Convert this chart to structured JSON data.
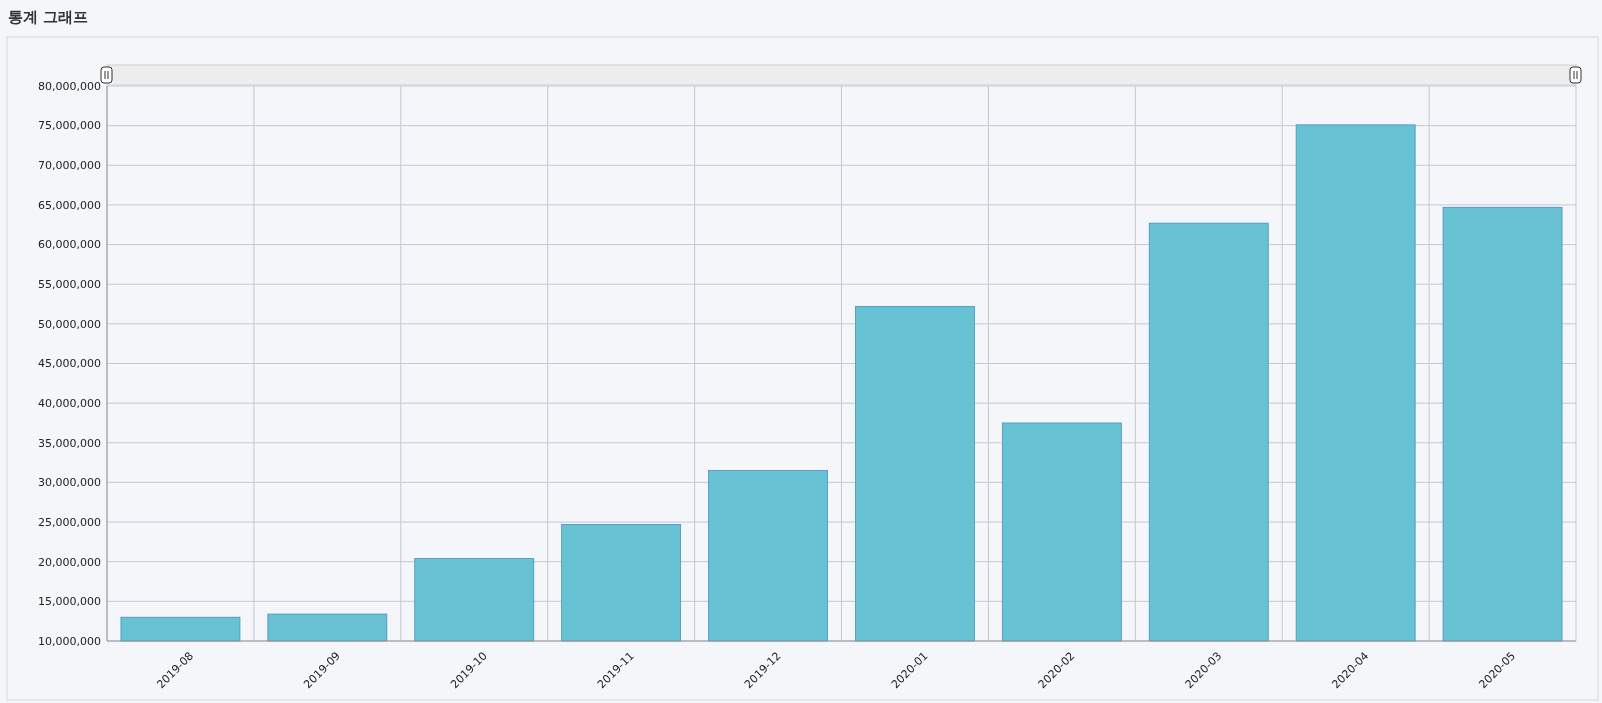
{
  "chart_data": {
    "type": "bar",
    "title": "통계 그래프",
    "categories": [
      "2019-08",
      "2019-09",
      "2019-10",
      "2019-11",
      "2019-12",
      "2020-01",
      "2020-02",
      "2020-03",
      "2020-04",
      "2020-05"
    ],
    "values": [
      13000000,
      13400000,
      20400000,
      24700000,
      31500000,
      52200000,
      37500000,
      62700000,
      75100000,
      64700000
    ],
    "color": "#67c3d4",
    "ylim": [
      10000000,
      80000000
    ],
    "yticks": [
      {
        "value": 10000000,
        "label": "10,000,000"
      },
      {
        "value": 15000000,
        "label": "15,000,000"
      },
      {
        "value": 20000000,
        "label": "20,000,000"
      },
      {
        "value": 25000000,
        "label": "25,000,000"
      },
      {
        "value": 30000000,
        "label": "30,000,000"
      },
      {
        "value": 35000000,
        "label": "35,000,000"
      },
      {
        "value": 40000000,
        "label": "40,000,000"
      },
      {
        "value": 45000000,
        "label": "45,000,000"
      },
      {
        "value": 50000000,
        "label": "50,000,000"
      },
      {
        "value": 55000000,
        "label": "55,000,000"
      },
      {
        "value": 60000000,
        "label": "60,000,000"
      },
      {
        "value": 65000000,
        "label": "65,000,000"
      },
      {
        "value": 70000000,
        "label": "70,000,000"
      },
      {
        "value": 75000000,
        "label": "75,000,000"
      },
      {
        "value": 80000000,
        "label": "80,000,000"
      }
    ],
    "grid": true
  }
}
